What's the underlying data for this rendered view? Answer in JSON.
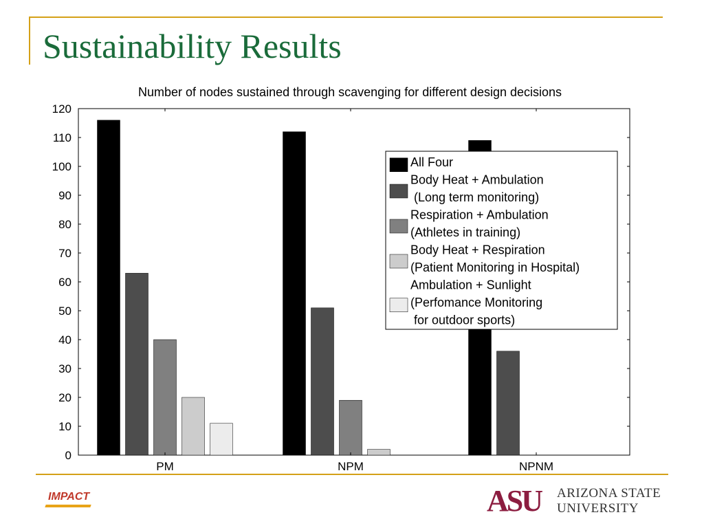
{
  "slide": {
    "title": "Sustainability Results"
  },
  "logos": {
    "impact": "IMPACT",
    "asu_mark": "ASU",
    "asu_name_line1": "ARIZONA STATE",
    "asu_name_line2": "UNIVERSITY"
  },
  "chart_data": {
    "type": "bar",
    "title": "Number of nodes sustained through scavenging for different design decisions",
    "xlabel": "",
    "ylabel": "",
    "categories": [
      "PM",
      "NPM",
      "NPNM"
    ],
    "ylim": [
      0,
      120
    ],
    "yticks": [
      0,
      10,
      20,
      30,
      40,
      50,
      60,
      70,
      80,
      90,
      100,
      110,
      120
    ],
    "grid": false,
    "legend_position": "top-right",
    "series": [
      {
        "name": "All Four",
        "legend_lines": [
          "All Four"
        ],
        "color": "#000000",
        "values": [
          116,
          112,
          109
        ]
      },
      {
        "name": "Body Heat + Ambulation (Long term monitoring)",
        "legend_lines": [
          "Body Heat + Ambulation",
          " (Long term monitoring)"
        ],
        "color": "#4d4d4d",
        "values": [
          63,
          51,
          36
        ]
      },
      {
        "name": "Respiration + Ambulation (Athletes in training)",
        "legend_lines": [
          "Respiration + Ambulation",
          "(Athletes in training)"
        ],
        "color": "#808080",
        "values": [
          40,
          19,
          0
        ]
      },
      {
        "name": "Body Heat + Respiration (Patient Monitoring in Hospital)",
        "legend_lines": [
          "Body Heat + Respiration",
          "(Patient Monitoring in Hospital)"
        ],
        "color": "#cccccc",
        "values": [
          20,
          2,
          0
        ]
      },
      {
        "name": "Ambulation + Sunlight (Perfomance Monitoring for outdoor sports)",
        "legend_lines": [
          "Ambulation + Sunlight",
          "(Perfomance Monitoring",
          " for outdoor sports)"
        ],
        "color": "#ececec",
        "values": [
          11,
          0,
          0
        ]
      }
    ]
  }
}
